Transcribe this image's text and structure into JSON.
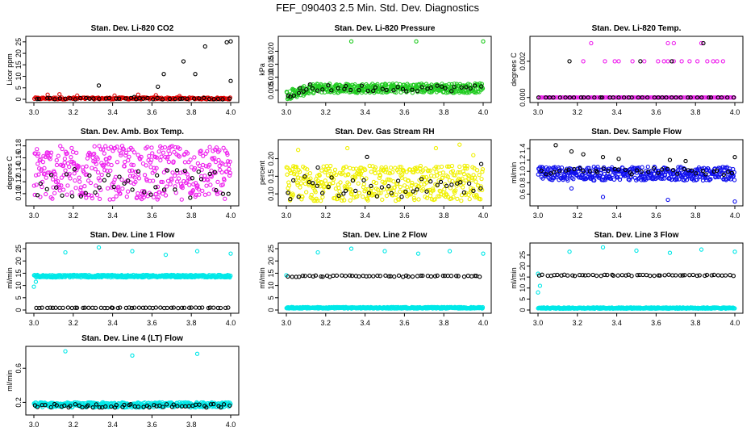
{
  "page": {
    "title": "FEF_090403  2.5 Min. Std. Dev. Diagnostics"
  },
  "colors": {
    "black": "#000000",
    "red": "#e00000",
    "green": "#22cc22",
    "magenta": "#ee22ee",
    "yellow": "#f0f000",
    "blue": "#1010ee",
    "cyan": "#00e8e8"
  },
  "chart_data": [
    {
      "type": "scatter",
      "title": "Stan. Dev. Li-820 CO2",
      "ylabel": "Licor ppm",
      "xlim": [
        3.0,
        4.0
      ],
      "ylim": [
        0,
        26
      ],
      "xticks": [
        "3.0",
        "3.2",
        "3.4",
        "3.6",
        "3.8",
        "4.0"
      ],
      "yticks": [
        "0",
        "5",
        "10",
        "15",
        "20",
        "25"
      ],
      "series": [
        {
          "name": "primary",
          "color": "#e00000",
          "gen": "band",
          "base": 0.4,
          "spread": 0.4,
          "n": 200,
          "outliers": [
            [
              3.07,
              2.0
            ],
            [
              3.13,
              2.2
            ],
            [
              3.22,
              1.6
            ],
            [
              3.41,
              1.6
            ],
            [
              3.53,
              2.0
            ],
            [
              3.62,
              1.8
            ],
            [
              3.74,
              1.4
            ]
          ]
        },
        {
          "name": "secondary",
          "color": "#000000",
          "gen": "band",
          "base": 0.3,
          "spread": 0.3,
          "n": 40,
          "outliers": [
            [
              3.33,
              6.0
            ],
            [
              3.63,
              5.5
            ],
            [
              3.66,
              11.0
            ],
            [
              3.76,
              16.5
            ],
            [
              3.82,
              11.0
            ],
            [
              3.87,
              23.0
            ],
            [
              3.98,
              24.8
            ],
            [
              4.0,
              25.2
            ],
            [
              4.0,
              8.0
            ],
            [
              3.51,
              1.0
            ]
          ]
        }
      ]
    },
    {
      "type": "scatter",
      "title": "Stan. Dev. Li-820 Pressure",
      "ylabel": "kPa",
      "xlim": [
        3.0,
        4.0
      ],
      "ylim": [
        0.0015,
        0.0245
      ],
      "xticks": [
        "3.0",
        "3.2",
        "3.4",
        "3.6",
        "3.8",
        "4.0"
      ],
      "yticks": [
        "0.005",
        "0.010",
        "0.015",
        "0.020"
      ],
      "ytick_values": [
        0.005,
        0.01,
        0.015,
        0.02
      ],
      "series": [
        {
          "name": "primary",
          "color": "#22cc22",
          "gen": "band",
          "base": 0.0058,
          "spread": 0.0018,
          "n": 420,
          "ramp": true,
          "outliers": [
            [
              3.33,
              0.0238
            ],
            [
              3.66,
              0.0238
            ],
            [
              4.0,
              0.0238
            ]
          ]
        },
        {
          "name": "secondary",
          "color": "#000000",
          "gen": "band",
          "base": 0.0058,
          "spread": 0.0012,
          "n": 40,
          "ramp": true,
          "outliers": [
            [
              3.02,
              0.0025
            ],
            [
              3.07,
              0.0058
            ],
            [
              3.12,
              0.0072
            ]
          ]
        }
      ]
    },
    {
      "type": "scatter",
      "title": "Stan. Dev. Li-820 Temp.",
      "ylabel": "degrees C",
      "xlim": [
        3.0,
        4.0
      ],
      "ylim": [
        -0.0001,
        0.0032
      ],
      "xticks": [
        "3.0",
        "3.2",
        "3.4",
        "3.6",
        "3.8",
        "4.0"
      ],
      "yticks": [
        "0.000",
        "0.002"
      ],
      "ytick_values": [
        0.0,
        0.002
      ],
      "series": [
        {
          "name": "primary",
          "color": "#ee22ee",
          "gen": "band",
          "base": 0.0,
          "spread": 0.0,
          "n": 160,
          "outliers": [
            [
              3.23,
              0.002
            ],
            [
              3.27,
              0.003
            ],
            [
              3.34,
              0.002
            ],
            [
              3.39,
              0.002
            ],
            [
              3.41,
              0.002
            ],
            [
              3.48,
              0.002
            ],
            [
              3.54,
              0.002
            ],
            [
              3.61,
              0.002
            ],
            [
              3.64,
              0.002
            ],
            [
              3.66,
              0.002
            ],
            [
              3.66,
              0.003
            ],
            [
              3.69,
              0.003
            ],
            [
              3.69,
              0.002
            ],
            [
              3.73,
              0.002
            ],
            [
              3.77,
              0.002
            ],
            [
              3.81,
              0.002
            ],
            [
              3.83,
              0.003
            ],
            [
              3.86,
              0.002
            ],
            [
              3.89,
              0.002
            ],
            [
              3.91,
              0.002
            ],
            [
              3.94,
              0.002
            ]
          ]
        },
        {
          "name": "secondary",
          "color": "#000000",
          "gen": "band",
          "base": 0.0,
          "spread": 0.0,
          "n": 40,
          "outliers": [
            [
              3.16,
              0.002
            ],
            [
              3.84,
              0.003
            ],
            [
              3.68,
              0.002
            ],
            [
              3.52,
              0.002
            ]
          ]
        }
      ]
    },
    {
      "type": "scatter",
      "title": "Stan. Dev. Amb. Box Temp.",
      "ylabel": "degrees C",
      "xlim": [
        3.0,
        4.0
      ],
      "ylim": [
        0.085,
        0.185
      ],
      "xticks": [
        "3.0",
        "3.2",
        "3.4",
        "3.6",
        "3.8",
        "4.0"
      ],
      "yticks": [
        "0.10",
        "0.12",
        "0.14",
        "0.16",
        "0.18"
      ],
      "ytick_values": [
        0.1,
        0.12,
        0.14,
        0.16,
        0.18
      ],
      "series": [
        {
          "name": "primary",
          "color": "#ee22ee",
          "gen": "band",
          "base": 0.135,
          "spread": 0.045,
          "n": 420
        },
        {
          "name": "secondary",
          "color": "#000000",
          "gen": "band",
          "base": 0.118,
          "spread": 0.025,
          "n": 40
        }
      ]
    },
    {
      "type": "scatter",
      "title": "Stan. Dev. Gas Stream RH",
      "ylabel": "percent",
      "xlim": [
        3.0,
        4.0
      ],
      "ylim": [
        0.075,
        0.245
      ],
      "xticks": [
        "3.0",
        "3.2",
        "3.4",
        "3.6",
        "3.8",
        "4.0"
      ],
      "yticks": [
        "0.10",
        "0.15",
        "0.20"
      ],
      "ytick_values": [
        0.1,
        0.15,
        0.2
      ],
      "series": [
        {
          "name": "primary",
          "color": "#f0f000",
          "gen": "band",
          "base": 0.13,
          "spread": 0.05,
          "n": 420,
          "outliers": [
            [
              3.06,
              0.225
            ],
            [
              3.31,
              0.23
            ],
            [
              3.76,
              0.23
            ],
            [
              3.88,
              0.24
            ],
            [
              3.95,
              0.21
            ]
          ]
        },
        {
          "name": "secondary",
          "color": "#000000",
          "gen": "band",
          "base": 0.12,
          "spread": 0.03,
          "n": 40,
          "outliers": [
            [
              3.02,
              0.085
            ],
            [
              3.16,
              0.175
            ],
            [
              3.41,
              0.205
            ],
            [
              3.99,
              0.185
            ]
          ]
        }
      ]
    },
    {
      "type": "scatter",
      "title": "Stan. Dev. Sample Flow",
      "ylabel": "ml/min",
      "xlim": [
        3.0,
        4.0
      ],
      "ylim": [
        0.45,
        1.5
      ],
      "xticks": [
        "3.0",
        "3.2",
        "3.4",
        "3.6",
        "3.8",
        "4.0"
      ],
      "yticks": [
        "0.6",
        "0.8",
        "1.0",
        "1.2",
        "1.4"
      ],
      "ytick_values": [
        0.6,
        0.8,
        1.0,
        1.2,
        1.4
      ],
      "series": [
        {
          "name": "primary",
          "color": "#1010ee",
          "gen": "band",
          "base": 0.96,
          "spread": 0.12,
          "n": 420,
          "outliers": [
            [
              3.17,
              0.7
            ],
            [
              3.33,
              0.55
            ],
            [
              3.66,
              0.5
            ],
            [
              4.0,
              0.47
            ]
          ]
        },
        {
          "name": "secondary",
          "color": "#000000",
          "gen": "band",
          "base": 1.0,
          "spread": 0.06,
          "n": 40,
          "outliers": [
            [
              3.09,
              1.46
            ],
            [
              3.17,
              1.35
            ],
            [
              3.23,
              1.3
            ],
            [
              3.33,
              1.25
            ],
            [
              3.41,
              1.22
            ],
            [
              3.67,
              1.2
            ],
            [
              3.75,
              1.18
            ],
            [
              4.0,
              1.25
            ]
          ]
        }
      ]
    },
    {
      "type": "scatter",
      "title": "Stan. Dev. Line 1 Flow",
      "ylabel": "ml/min",
      "xlim": [
        3.0,
        4.0
      ],
      "ylim": [
        0,
        26
      ],
      "xticks": [
        "3.0",
        "3.2",
        "3.4",
        "3.6",
        "3.8",
        "4.0"
      ],
      "yticks": [
        "0",
        "5",
        "10",
        "15",
        "20",
        "25"
      ],
      "series": [
        {
          "name": "primary",
          "color": "#00e8e8",
          "gen": "band",
          "base": 13.8,
          "spread": 0.5,
          "n": 420,
          "outliers": [
            [
              3.0,
              9.5
            ],
            [
              3.01,
              11.5
            ],
            [
              3.16,
              23.5
            ],
            [
              3.33,
              25.5
            ],
            [
              3.5,
              24.0
            ],
            [
              3.67,
              22.5
            ],
            [
              3.83,
              24.0
            ],
            [
              4.0,
              23.0
            ]
          ]
        },
        {
          "name": "secondary",
          "color": "#000000",
          "gen": "band",
          "base": 0.9,
          "spread": 0.1,
          "n": 55
        }
      ]
    },
    {
      "type": "scatter",
      "title": "Stan. Dev. Line 2 Flow",
      "ylabel": "ml/min",
      "xlim": [
        3.0,
        4.0
      ],
      "ylim": [
        0,
        26
      ],
      "xticks": [
        "3.0",
        "3.2",
        "3.4",
        "3.6",
        "3.8",
        "4.0"
      ],
      "yticks": [
        "0",
        "5",
        "10",
        "15",
        "20",
        "25"
      ],
      "series": [
        {
          "name": "primary",
          "color": "#00e8e8",
          "gen": "band",
          "base": 0.9,
          "spread": 0.3,
          "n": 420,
          "outliers": [
            [
              3.0,
              14.2
            ],
            [
              3.16,
              23.5
            ],
            [
              3.33,
              25.0
            ],
            [
              3.5,
              24.0
            ],
            [
              3.67,
              23.0
            ],
            [
              3.83,
              24.0
            ],
            [
              4.0,
              23.0
            ]
          ]
        },
        {
          "name": "secondary",
          "color": "#000000",
          "gen": "band",
          "base": 13.8,
          "spread": 0.3,
          "n": 55
        }
      ]
    },
    {
      "type": "scatter",
      "title": "Stan. Dev. Line 3 Flow",
      "ylabel": "ml/min",
      "xlim": [
        3.0,
        4.0
      ],
      "ylim": [
        0,
        29
      ],
      "xticks": [
        "3.0",
        "3.2",
        "3.4",
        "3.6",
        "3.8",
        "4.0"
      ],
      "yticks": [
        "0",
        "5",
        "10",
        "15",
        "20",
        "25"
      ],
      "series": [
        {
          "name": "primary",
          "color": "#00e8e8",
          "gen": "band",
          "base": 0.9,
          "spread": 0.3,
          "n": 420,
          "outliers": [
            [
              3.0,
              8.0
            ],
            [
              3.01,
              11.0
            ],
            [
              3.0,
              16.5
            ],
            [
              3.16,
              26.5
            ],
            [
              3.33,
              28.5
            ],
            [
              3.5,
              27.0
            ],
            [
              3.67,
              26.0
            ],
            [
              3.83,
              27.5
            ],
            [
              4.0,
              26.5
            ]
          ]
        },
        {
          "name": "secondary",
          "color": "#000000",
          "gen": "band",
          "base": 15.8,
          "spread": 0.3,
          "n": 55
        }
      ]
    },
    {
      "type": "scatter",
      "title": "Stan. Dev. Line 4 (LT) Flow",
      "ylabel": "ml/min",
      "xlim": [
        3.0,
        4.0
      ],
      "ylim": [
        0.09,
        0.82
      ],
      "xticks": [
        "3.0",
        "3.2",
        "3.4",
        "3.6",
        "3.8",
        "4.0"
      ],
      "yticks": [
        "0.2",
        "0.6"
      ],
      "ytick_values": [
        0.2,
        0.6
      ],
      "series": [
        {
          "name": "primary",
          "color": "#00e8e8",
          "gen": "band",
          "base": 0.17,
          "spread": 0.03,
          "n": 420,
          "outliers": [
            [
              3.16,
              0.8
            ],
            [
              3.5,
              0.75
            ],
            [
              3.83,
              0.77
            ]
          ]
        },
        {
          "name": "secondary",
          "color": "#000000",
          "gen": "band",
          "base": 0.16,
          "spread": 0.02,
          "n": 55
        }
      ]
    }
  ]
}
